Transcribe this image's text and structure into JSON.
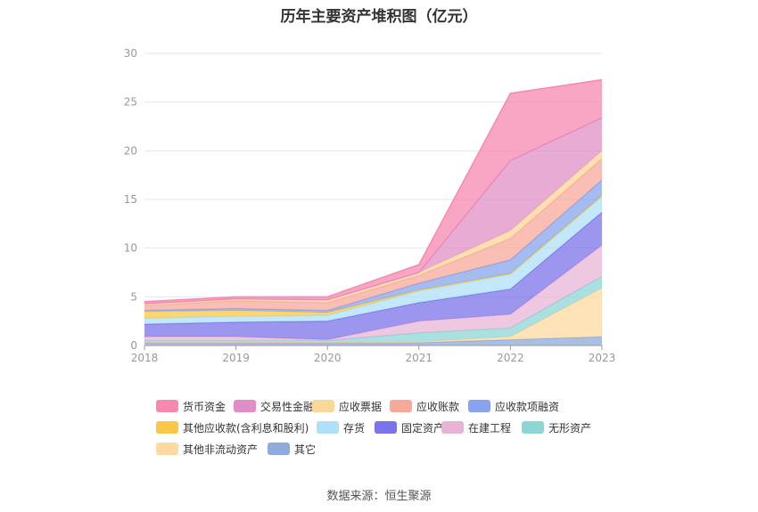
{
  "title": "历年主要资产堆积图（亿元）",
  "source": "数据来源：恒生聚源",
  "chart_data": {
    "type": "area",
    "stacked": true,
    "categories": [
      "2018",
      "2019",
      "2020",
      "2021",
      "2022",
      "2023"
    ],
    "ylim": [
      0,
      30
    ],
    "yticks": [
      0,
      5,
      10,
      15,
      20,
      25,
      30
    ],
    "grid": true,
    "legend_position": "bottom",
    "series": [
      {
        "name": "其它",
        "color": "#8faadc",
        "values": [
          0.3,
          0.3,
          0.3,
          0.3,
          0.6,
          0.9
        ]
      },
      {
        "name": "其他非流动资产",
        "color": "#ffd9a0",
        "values": [
          0.1,
          0.1,
          0.1,
          0.1,
          0.3,
          5.0
        ]
      },
      {
        "name": "无形资产",
        "color": "#8ed6d6",
        "values": [
          0.1,
          0.1,
          0.1,
          0.9,
          0.9,
          1.2
        ]
      },
      {
        "name": "在建工程",
        "color": "#e8b4d6",
        "values": [
          0.4,
          0.4,
          0.1,
          1.2,
          1.4,
          3.2
        ]
      },
      {
        "name": "固定资产",
        "color": "#7b73ea",
        "values": [
          1.3,
          1.5,
          1.9,
          1.9,
          2.6,
          3.4
        ]
      },
      {
        "name": "存货",
        "color": "#aee0f7",
        "values": [
          0.6,
          0.6,
          0.6,
          1.2,
          1.5,
          1.6
        ]
      },
      {
        "name": "其他应收款(含利息和股利)",
        "color": "#f9c846",
        "values": [
          0.7,
          0.6,
          0.3,
          0.1,
          0.1,
          0.1
        ]
      },
      {
        "name": "应收款项融资",
        "color": "#86a5ee",
        "values": [
          0.1,
          0.2,
          0.2,
          0.7,
          1.4,
          1.6
        ]
      },
      {
        "name": "应收账款",
        "color": "#f8a99b",
        "values": [
          0.5,
          0.8,
          0.8,
          0.8,
          2.2,
          2.2
        ]
      },
      {
        "name": "应收票据",
        "color": "#fcd79a",
        "values": [
          0.2,
          0.2,
          0.3,
          0.3,
          0.8,
          0.8
        ]
      },
      {
        "name": "交易性金融资产",
        "color": "#df8fc6",
        "values": [
          0.0,
          0.0,
          0.0,
          0.0,
          7.2,
          3.4
        ]
      },
      {
        "name": "货币资金",
        "color": "#f788b0",
        "values": [
          0.2,
          0.2,
          0.3,
          0.8,
          6.9,
          3.9
        ]
      }
    ],
    "legend_order": [
      "货币资金",
      "交易性金融资产",
      "应收票据",
      "应收账款",
      "应收款项融资",
      "其他应收款(含利息和股利)",
      "存货",
      "固定资产",
      "在建工程",
      "无形资产",
      "其他非流动资产",
      "其它"
    ]
  }
}
